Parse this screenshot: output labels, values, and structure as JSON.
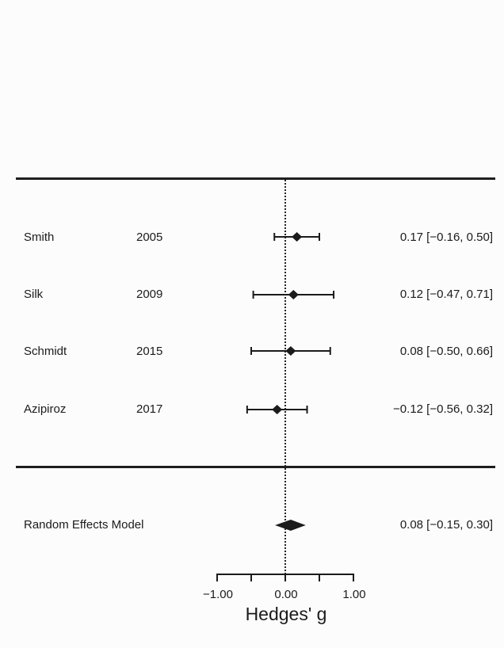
{
  "colors": {
    "foreground": "#1b1b1b",
    "background": "#fcfcfc"
  },
  "chart_data": {
    "type": "forest",
    "xlabel": "Hedges' g",
    "xlim": [
      -1.0,
      1.0
    ],
    "x_ticks": [
      -1.0,
      -0.5,
      0.0,
      0.5,
      1.0
    ],
    "x_tick_labels": [
      "−1.00",
      "0.00",
      "1.00"
    ],
    "zero_reference_line": 0.0,
    "studies": [
      {
        "name": "Smith",
        "year": "2005",
        "estimate": 0.17,
        "ci_lower": -0.16,
        "ci_upper": 0.5,
        "label": "0.17 [−0.16, 0.50]"
      },
      {
        "name": "Silk",
        "year": "2009",
        "estimate": 0.12,
        "ci_lower": -0.47,
        "ci_upper": 0.71,
        "label": "0.12 [−0.47, 0.71]"
      },
      {
        "name": "Schmidt",
        "year": "2015",
        "estimate": 0.08,
        "ci_lower": -0.5,
        "ci_upper": 0.66,
        "label": "0.08 [−0.50, 0.66]"
      },
      {
        "name": "Azipiroz",
        "year": "2017",
        "estimate": -0.12,
        "ci_lower": -0.56,
        "ci_upper": 0.32,
        "label": "−0.12 [−0.56, 0.32]"
      }
    ],
    "summary": {
      "name": "Random Effects Model",
      "estimate": 0.08,
      "ci_lower": -0.15,
      "ci_upper": 0.3,
      "label": "0.08 [−0.15, 0.30]"
    }
  }
}
